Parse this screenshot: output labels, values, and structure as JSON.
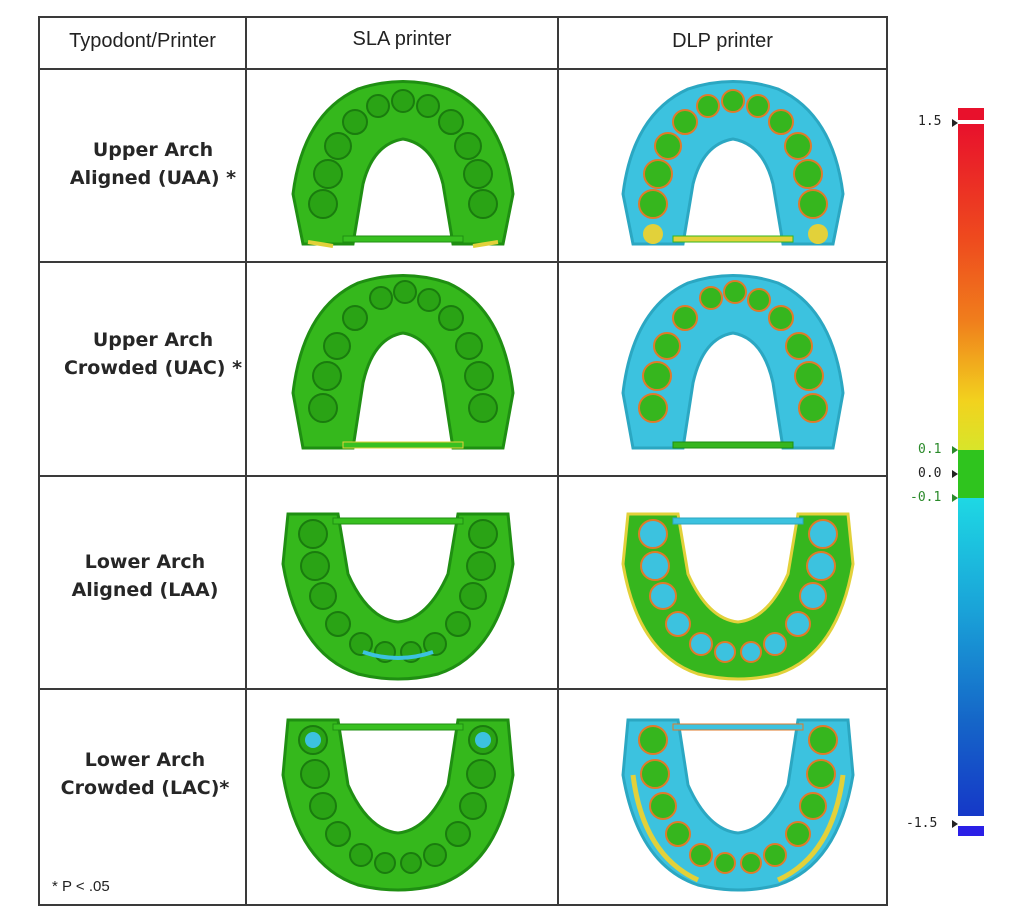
{
  "table": {
    "headers": [
      "Typodont/Printer",
      "SLA printer",
      "DLP printer"
    ],
    "rows": [
      {
        "label_line1": "Upper Arch",
        "label_line2": "Aligned (UAA) *"
      },
      {
        "label_line1": "Upper Arch",
        "label_line2": "Crowded (UAC) *"
      },
      {
        "label_line1": "Lower Arch",
        "label_line2": "Aligned (LAA)"
      },
      {
        "label_line1": "Lower Arch",
        "label_line2": "Crowded (LAC)*"
      }
    ],
    "footnote": "* P < .05"
  },
  "scale": {
    "labels": {
      "top": "1.5",
      "upper_tol": "0.1",
      "zero": "0.0",
      "lower_tol": "-0.1",
      "bottom": "-1.5"
    },
    "colors": {
      "red": "#e8112c",
      "orange": "#f07d1c",
      "yellow": "#f2d21e",
      "green": "#2fc41e",
      "cyan": "#1ed8e4",
      "blue": "#1538c8",
      "tol_label": "#2a8a2a"
    }
  },
  "arch_colors": {
    "sla_main": "#35b81c",
    "sla_dark": "#1f8f12",
    "dlp_main": "#36b61e",
    "dlp_cyan": "#3cc2df",
    "dlp_orange": "#e07a2a",
    "dlp_yellow": "#e2d13a"
  }
}
